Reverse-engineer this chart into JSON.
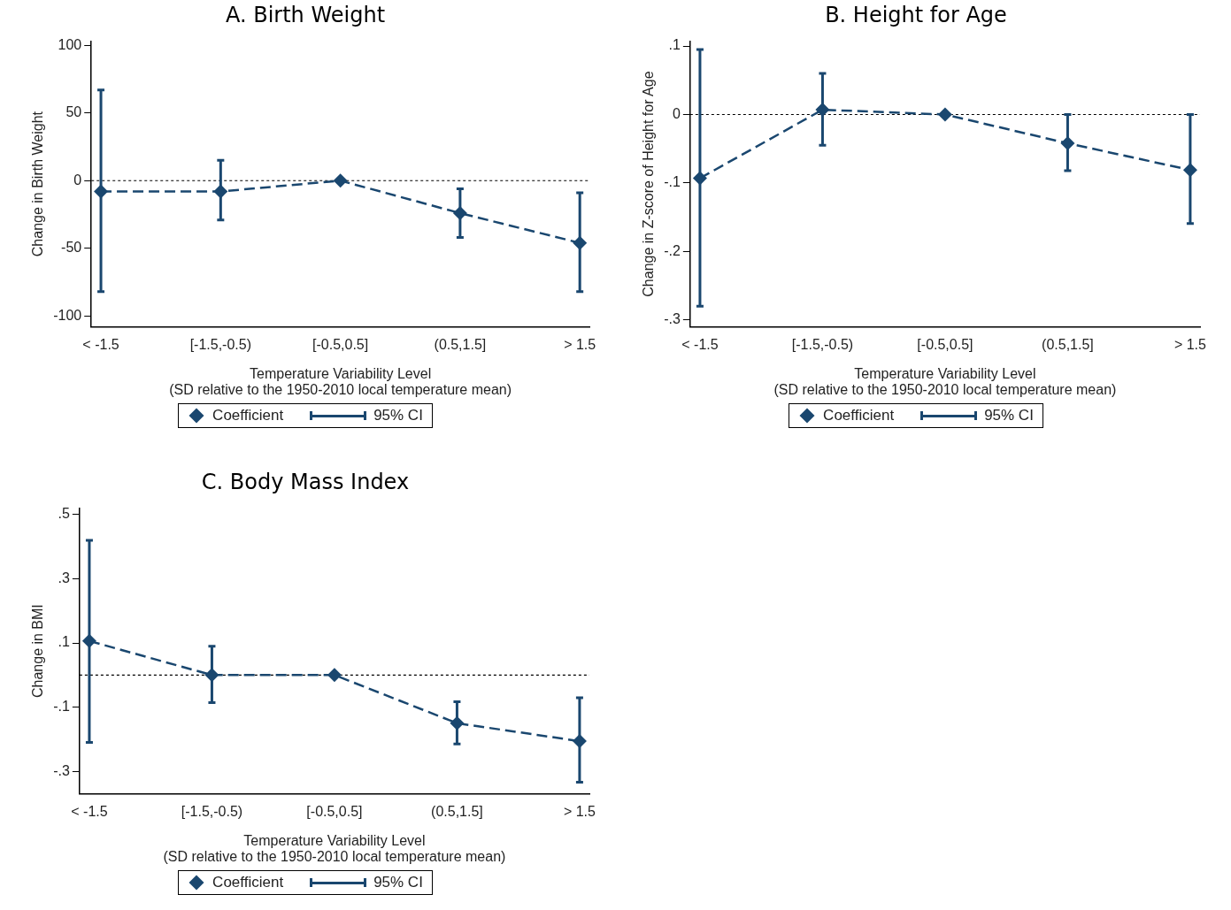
{
  "chart_data": [
    {
      "type": "line",
      "title": "A. Birth Weight",
      "xlabel": "Temperature Variability Level\n(SD relative to the 1950-2010 local temperature mean)",
      "ylabel": "Change in Birth Weight",
      "categories": [
        "< -1.5",
        "[-1.5,-0.5)",
        "[-0.5,0.5]",
        "(0.5,1.5]",
        "> 1.5"
      ],
      "series": [
        {
          "name": "Coefficient",
          "color": "#1a476f",
          "values": [
            -8,
            -8,
            0,
            -24,
            -46
          ],
          "errors": [
            [
              -82,
              67
            ],
            [
              -29,
              15
            ],
            null,
            [
              -42,
              -6
            ],
            [
              -82,
              -9
            ]
          ]
        }
      ],
      "ylim": [
        -108,
        103
      ],
      "yticks": [
        100,
        50,
        0,
        -50,
        -100
      ],
      "ref_lines": [
        {
          "axis": "y",
          "value": 0,
          "color": "#000000",
          "line_style": "dotted"
        }
      ],
      "marker": "diamond",
      "line_style": "dashed",
      "grid": false,
      "legend": "bottom",
      "annotations": [
        "95% CI"
      ]
    },
    {
      "type": "line",
      "title": "B. Height for Age",
      "xlabel": "Temperature Variability Level\n(SD relative to the 1950-2010 local temperature mean)",
      "ylabel": "Change in Z-score of Height for Age",
      "categories": [
        "< -1.5",
        "[-1.5,-0.5)",
        "[-0.5,0.5]",
        "(0.5,1.5]",
        "> 1.5"
      ],
      "series": [
        {
          "name": "Coefficient",
          "color": "#1a476f",
          "values": [
            -0.093,
            0.007,
            0,
            -0.042,
            -0.081
          ],
          "errors": [
            [
              -0.28,
              0.095
            ],
            [
              -0.045,
              0.06
            ],
            null,
            [
              -0.082,
              0
            ],
            [
              -0.159,
              0
            ]
          ]
        }
      ],
      "ylim": [
        -0.31,
        0.107
      ],
      "yticks": [
        {
          "value": 0.1,
          "label": ".1"
        },
        0,
        {
          "value": -0.1,
          "label": "-.1"
        },
        {
          "value": -0.2,
          "label": "-.2"
        },
        {
          "value": -0.3,
          "label": "-.3"
        }
      ],
      "ref_lines": [
        {
          "axis": "y",
          "value": 0,
          "color": "#000000",
          "line_style": "dotted"
        }
      ],
      "marker": "diamond",
      "line_style": "dashed",
      "grid": false,
      "legend": "bottom",
      "annotations": [
        "95% CI"
      ]
    },
    {
      "type": "line",
      "title": "C. Body Mass Index",
      "xlabel": "Temperature Variability Level\n(SD relative to the 1950-2010 local temperature mean)",
      "ylabel": "Change in BMI",
      "categories": [
        "< -1.5",
        "[-1.5,-0.5)",
        "[-0.5,0.5]",
        "(0.5,1.5]",
        "> 1.5"
      ],
      "series": [
        {
          "name": "Coefficient",
          "color": "#1a476f",
          "values": [
            0.106,
            0,
            0,
            -0.15,
            -0.206
          ],
          "errors": [
            [
              -0.21,
              0.42
            ],
            [
              -0.086,
              0.09
            ],
            null,
            [
              -0.215,
              -0.083
            ],
            [
              -0.334,
              -0.071
            ]
          ]
        }
      ],
      "ylim": [
        -0.37,
        0.52
      ],
      "yticks": [
        {
          "value": 0.5,
          "label": ".5"
        },
        {
          "value": 0.3,
          "label": ".3"
        },
        {
          "value": 0.1,
          "label": ".1"
        },
        {
          "value": -0.1,
          "label": "-.1"
        },
        {
          "value": -0.3,
          "label": "-.3"
        }
      ],
      "ref_lines": [
        {
          "axis": "y",
          "value": 0,
          "color": "#000000",
          "line_style": "dotted"
        }
      ],
      "marker": "diamond",
      "line_style": "dashed",
      "grid": false,
      "legend": "bottom",
      "annotations": [
        "95% CI"
      ]
    }
  ]
}
